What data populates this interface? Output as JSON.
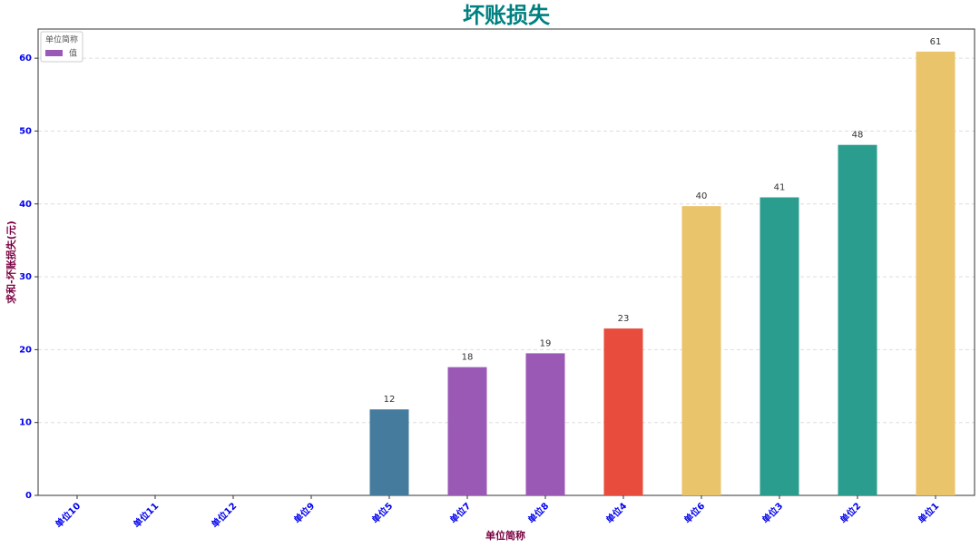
{
  "chart_data": {
    "type": "bar",
    "title": "坏账损失",
    "x_label": "单位简称",
    "y_label": "求和-坏账损失(元)",
    "categories": [
      "单位10",
      "单位11",
      "单位12",
      "单位9",
      "单位5",
      "单位7",
      "单位8",
      "单位4",
      "单位6",
      "单位3",
      "单位2",
      "单位1"
    ],
    "values": [
      0,
      0,
      0,
      0,
      11.8,
      17.6,
      19.5,
      22.9,
      39.7,
      40.9,
      48.1,
      60.9
    ],
    "value_labels": [
      null,
      null,
      null,
      null,
      "12",
      "18",
      "19",
      "23",
      "40",
      "41",
      "48",
      "61"
    ],
    "colors": [
      "#457b9d",
      "#457b9d",
      "#457b9d",
      "#457b9d",
      "#457b9d",
      "#9b59b6",
      "#9b59b6",
      "#e74c3c",
      "#e9c46a",
      "#2a9d8f",
      "#2a9d8f",
      "#e9c46a"
    ],
    "legend": {
      "title": "单位简称",
      "label": "值",
      "color": "#9b59b6",
      "position": "upper left"
    },
    "ylim": [
      0,
      64
    ],
    "yticks": [
      0,
      10,
      20,
      30,
      40,
      50,
      60
    ],
    "grid": true
  }
}
